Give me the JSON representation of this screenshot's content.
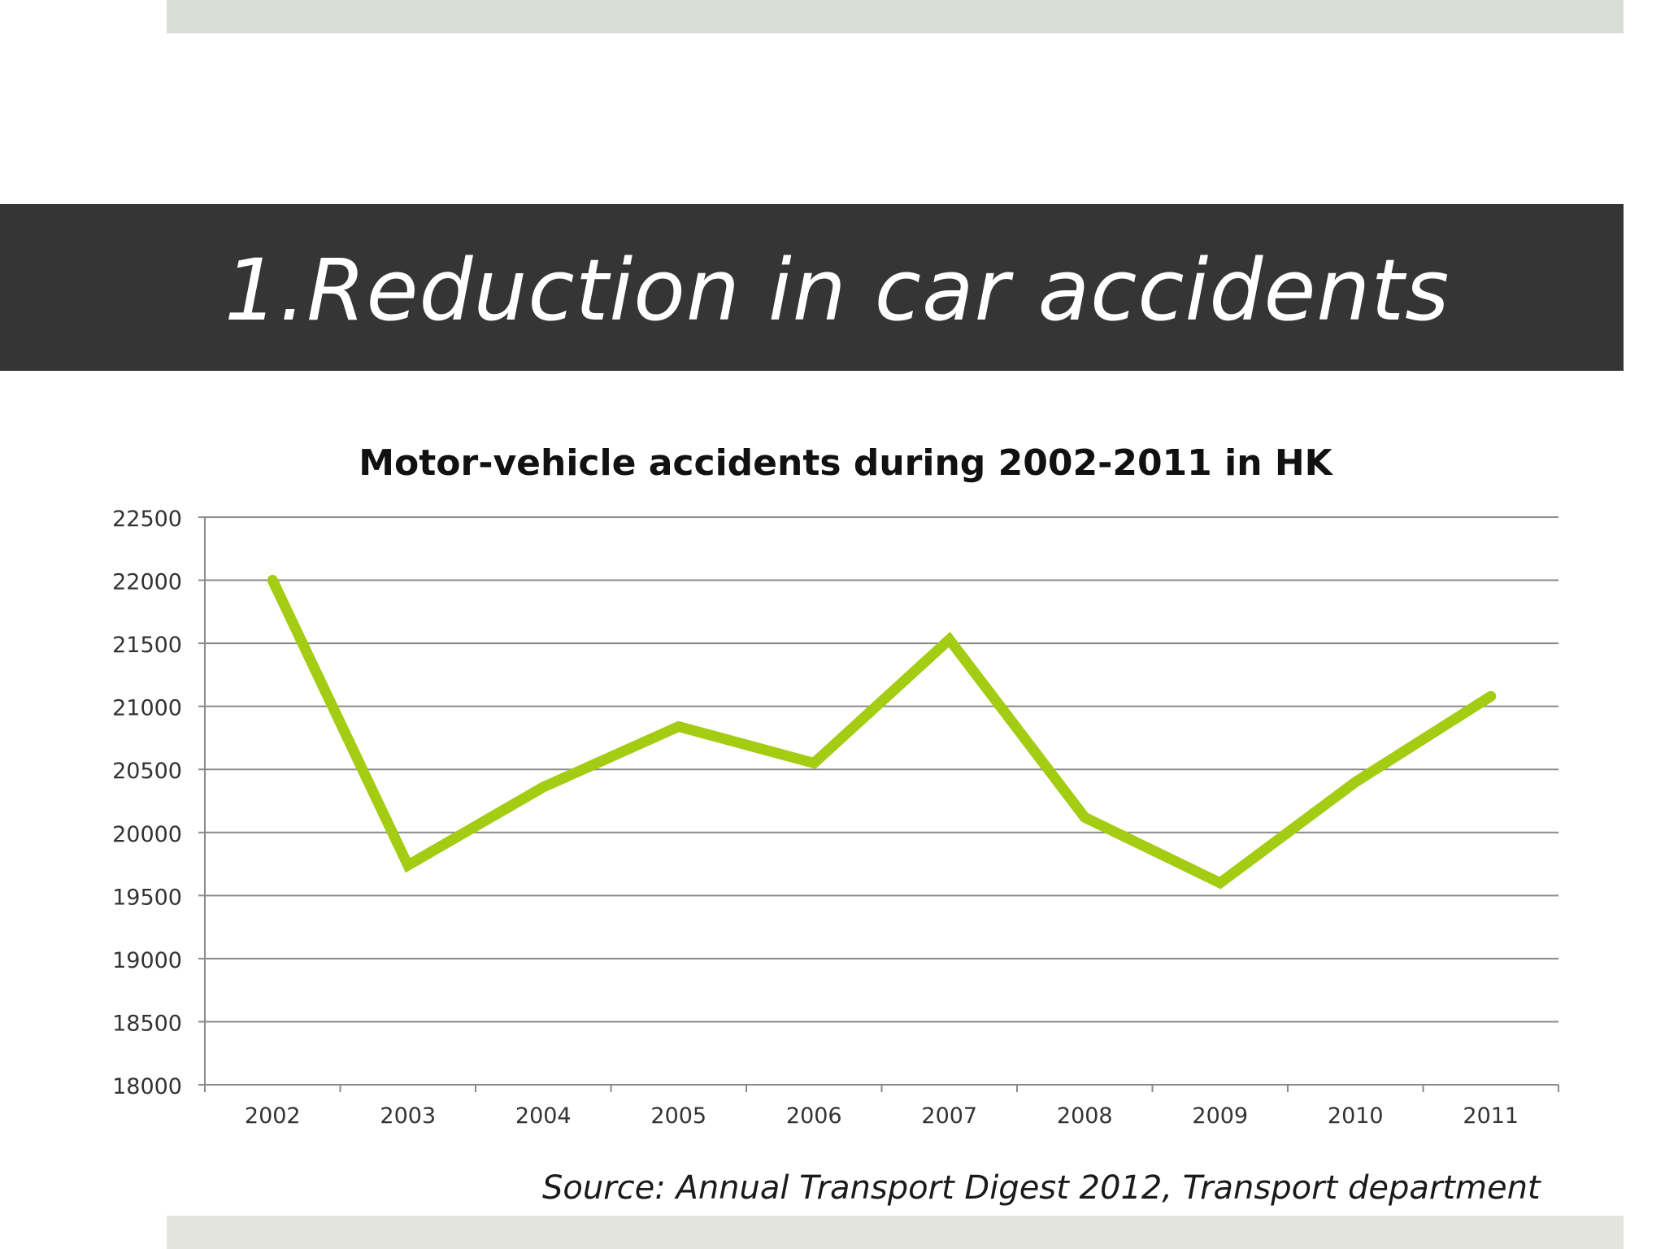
{
  "slide": {
    "title": "1.Reduction in car accidents",
    "source": "Source: Annual Transport Digest 2012, Transport department"
  },
  "colors": {
    "line": "#a3cc12",
    "title_bar": "#353535",
    "band": "#d9ddd3",
    "grid": "#8a8a8a"
  },
  "chart_data": {
    "type": "line",
    "title": "Motor-vehicle accidents during 2002-2011 in HK",
    "xlabel": "",
    "ylabel": "",
    "categories": [
      "2002",
      "2003",
      "2004",
      "2005",
      "2006",
      "2007",
      "2008",
      "2009",
      "2010",
      "2011"
    ],
    "series": [
      {
        "values": [
          22000,
          19740,
          20360,
          20840,
          20550,
          21530,
          20120,
          19600,
          20400,
          21080
        ]
      }
    ],
    "ylim": [
      18000,
      22500
    ],
    "yticks": [
      18000,
      18500,
      19000,
      19500,
      20000,
      20500,
      21000,
      21500,
      22000,
      22500
    ],
    "ytick_labels": [
      "18000",
      "18500",
      "19000",
      "19500",
      "20000",
      "20500",
      "21000",
      "21500",
      "22000",
      "22500"
    ],
    "grid": true,
    "legend": "none"
  }
}
